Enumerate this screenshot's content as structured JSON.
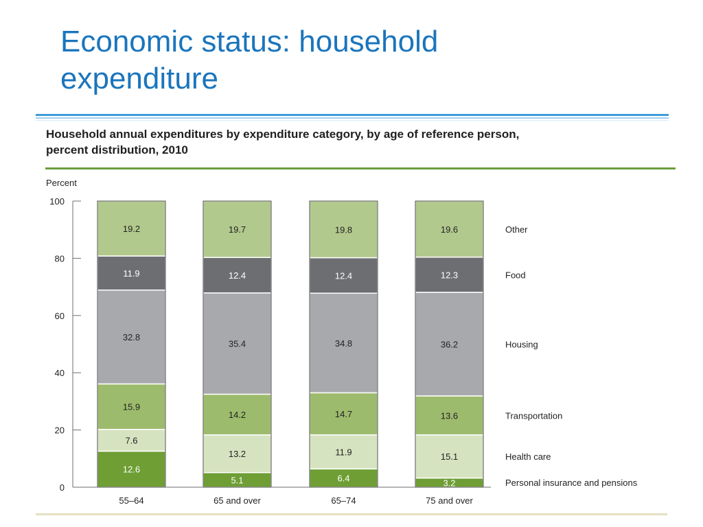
{
  "slide": {
    "title_line1": "Economic status: household",
    "title_line2": "expenditure"
  },
  "chart_data": {
    "type": "bar",
    "stacked": true,
    "title": "Household annual expenditures by expenditure category, by age of reference person, percent distribution, 2010",
    "title_line1": "Household annual expenditures by expenditure category, by age of reference person,",
    "title_line2": "percent distribution, 2010",
    "ylabel": "Percent",
    "xlabel": "",
    "ylim": [
      0,
      100
    ],
    "yticks": [
      0,
      20,
      40,
      60,
      80,
      100
    ],
    "grid": false,
    "legend": "right, labels aligned with segments",
    "categories": [
      "55–64",
      "65 and over",
      "65–74",
      "75 and over"
    ],
    "series": [
      {
        "name": "Personal insurance and pensions",
        "color": "#6e9e34",
        "label_color": "#ffffff",
        "values": [
          12.6,
          5.1,
          6.4,
          3.2
        ]
      },
      {
        "name": "Health care",
        "color": "#d6e3c0",
        "label_color": "#222222",
        "values": [
          7.6,
          13.2,
          11.9,
          15.1
        ]
      },
      {
        "name": "Transportation",
        "color": "#9dbb6c",
        "label_color": "#222222",
        "values": [
          15.9,
          14.2,
          14.7,
          13.6
        ]
      },
      {
        "name": "Housing",
        "color": "#a7a9ac",
        "label_color": "#222222",
        "values": [
          32.8,
          35.4,
          34.8,
          36.2
        ]
      },
      {
        "name": "Food",
        "color": "#6d6e71",
        "label_color": "#ffffff",
        "values": [
          11.9,
          12.4,
          12.4,
          12.3
        ]
      },
      {
        "name": "Other",
        "color": "#b2c98d",
        "label_color": "#222222",
        "values": [
          19.2,
          19.7,
          19.8,
          19.6
        ]
      }
    ]
  }
}
